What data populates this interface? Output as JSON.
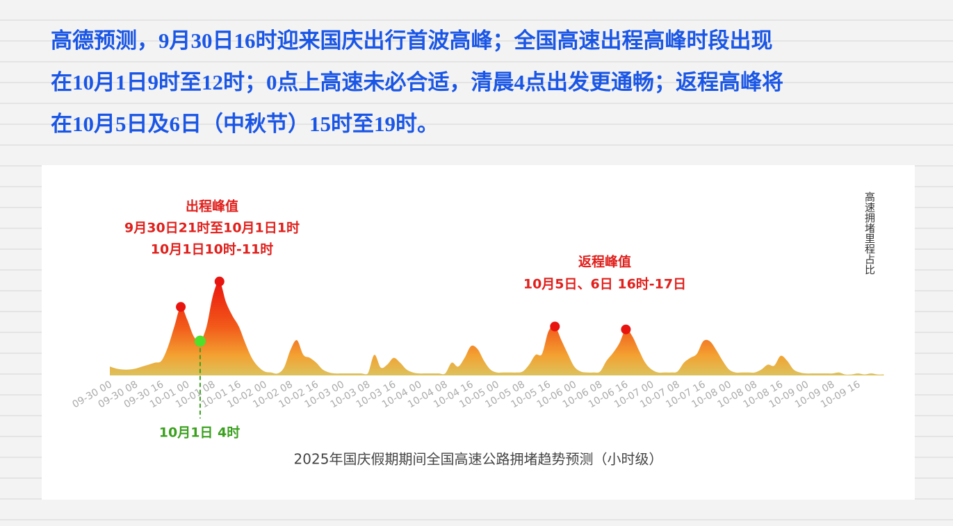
{
  "headline": [
    "高德预测，9月30日16时迎来国庆出行首波高峰；全国高速出程高峰时段出现",
    "在10月1日9时至12时；0点上高速未必合适，清晨4点出发更通畅；返程高峰将",
    "在10月5日及6日（中秋节）15时至19时。"
  ],
  "chart_data": {
    "type": "area",
    "title": "2025年国庆假期期间全国高速公路拥堵趋势预测（小时级）",
    "y_label": "高速拥堵里程占比",
    "categories": [
      "09-30 00",
      null,
      null,
      null,
      "09-30 08",
      null,
      null,
      null,
      "09-30 16",
      null,
      null,
      null,
      "10-01 00",
      null,
      null,
      null,
      "10-01 08",
      null,
      null,
      null,
      "10-01 16",
      null,
      null,
      null,
      "10-02 00",
      null,
      null,
      null,
      "10-02 08",
      null,
      null,
      null,
      "10-02 16",
      null,
      null,
      null,
      "10-03 00",
      null,
      null,
      null,
      "10-03 08",
      null,
      null,
      null,
      "10-03 16",
      null,
      null,
      null,
      "10-04 00",
      null,
      null,
      null,
      "10-04 08",
      null,
      null,
      null,
      "10-04 16",
      null,
      null,
      null,
      "10-05 00",
      null,
      null,
      null,
      "10-05 08",
      null,
      null,
      null,
      "10-05 16",
      null,
      null,
      null,
      "10-06 00",
      null,
      null,
      null,
      "10-06 08",
      null,
      null,
      null,
      "10-06 16",
      null,
      null,
      null,
      "10-07 00",
      null,
      null,
      null,
      "10-07 08",
      null,
      null,
      null,
      "10-07 16",
      null,
      null,
      null,
      "10-08 00",
      null,
      null,
      null,
      "10-08 08",
      null,
      null,
      null,
      "10-08 16",
      null,
      null,
      null,
      "10-09 00",
      null,
      null,
      null,
      "10-09 08",
      null,
      null,
      null,
      "10-09 16",
      null,
      null,
      null,
      null
    ],
    "values": [
      9,
      7,
      6,
      6,
      7,
      9,
      11,
      13,
      15,
      29,
      50,
      70,
      57,
      40,
      35,
      50,
      82,
      96,
      75,
      61,
      50,
      33,
      18,
      9,
      4,
      3,
      2,
      8,
      26,
      36,
      21,
      18,
      13,
      6,
      3,
      2,
      2,
      2,
      2,
      2,
      2,
      21,
      8,
      11,
      18,
      13,
      6,
      3,
      2,
      2,
      2,
      2,
      2,
      13,
      9,
      18,
      30,
      27,
      15,
      6,
      3,
      3,
      3,
      3,
      4,
      11,
      21,
      22,
      45,
      50,
      36,
      22,
      9,
      4,
      3,
      3,
      4,
      15,
      23,
      33,
      47,
      40,
      26,
      13,
      6,
      3,
      3,
      3,
      4,
      13,
      18,
      22,
      35,
      35,
      26,
      15,
      6,
      3,
      3,
      3,
      3,
      6,
      11,
      10,
      20,
      15,
      6,
      3,
      2,
      2,
      2,
      2,
      2,
      3,
      1,
      1,
      2,
      1,
      2,
      1,
      1
    ],
    "ylim": [
      0,
      100
    ],
    "markers": [
      {
        "index": 11,
        "color": "#e8140f"
      },
      {
        "index": 17,
        "color": "#e8140f"
      },
      {
        "index": 69,
        "color": "#e8140f"
      },
      {
        "index": 80,
        "color": "#e8140f"
      },
      {
        "index": 14,
        "color": "#4ee02a"
      }
    ],
    "annotations": {
      "outbound": {
        "title": "出程峰值",
        "lines": [
          "9月30日21时至10月1日1时",
          "10月1日10时-11时"
        ]
      },
      "return": {
        "title": "返程峰值",
        "lines": [
          "10月5日、6日 16时-17日"
        ]
      },
      "dawn": "10月1日 4时"
    }
  }
}
